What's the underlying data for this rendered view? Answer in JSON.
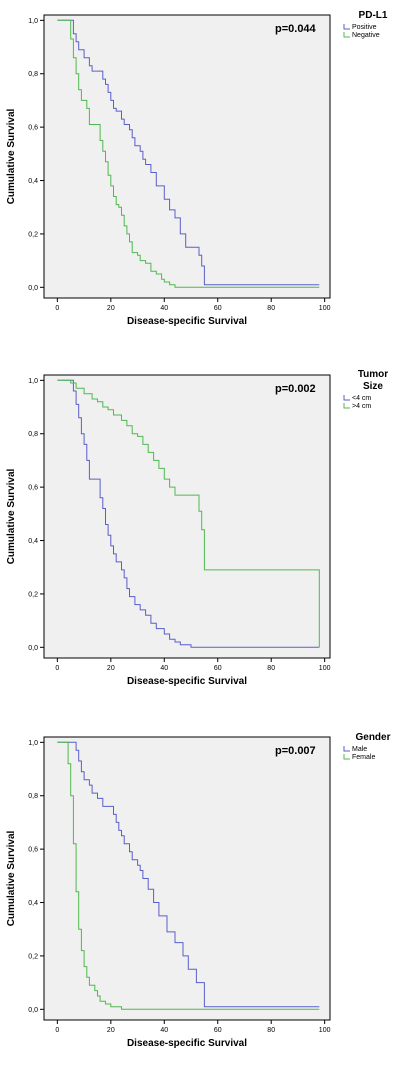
{
  "chart_data": [
    {
      "type": "line",
      "subtype": "kaplan-meier",
      "legend_title": [
        "PD-L1"
      ],
      "annotation": "p=0.044",
      "xlabel": "Disease-specific Survival",
      "ylabel": "Cumulative Survival",
      "xlim": [
        -5,
        102
      ],
      "ylim": [
        -0.04,
        1.02
      ],
      "x_ticks": [
        0,
        20,
        40,
        60,
        80,
        100
      ],
      "y_ticks": [
        0.0,
        0.2,
        0.4,
        0.6,
        0.8,
        1.0
      ],
      "y_tick_labels": [
        "0,0",
        "0,2",
        "0,4",
        "0,6",
        "0,8",
        "1,0"
      ],
      "legend_position": "top-right",
      "series": [
        {
          "name": "Positive",
          "color": "#5a5fc8",
          "points": [
            [
              0,
              1.0
            ],
            [
              5,
              1.0
            ],
            [
              6,
              0.95
            ],
            [
              7,
              0.92
            ],
            [
              8,
              0.89
            ],
            [
              10,
              0.86
            ],
            [
              12,
              0.83
            ],
            [
              13,
              0.81
            ],
            [
              16,
              0.81
            ],
            [
              17,
              0.78
            ],
            [
              18,
              0.76
            ],
            [
              19,
              0.73
            ],
            [
              20,
              0.7
            ],
            [
              21,
              0.67
            ],
            [
              22,
              0.66
            ],
            [
              24,
              0.63
            ],
            [
              25,
              0.61
            ],
            [
              27,
              0.59
            ],
            [
              28,
              0.56
            ],
            [
              29,
              0.53
            ],
            [
              30,
              0.53
            ],
            [
              31,
              0.51
            ],
            [
              32,
              0.48
            ],
            [
              33,
              0.46
            ],
            [
              34,
              0.46
            ],
            [
              35,
              0.43
            ],
            [
              37,
              0.38
            ],
            [
              40,
              0.33
            ],
            [
              42,
              0.29
            ],
            [
              44,
              0.26
            ],
            [
              46,
              0.2
            ],
            [
              48,
              0.15
            ],
            [
              50,
              0.15
            ],
            [
              53,
              0.12
            ],
            [
              54,
              0.08
            ],
            [
              55,
              0.01
            ],
            [
              98,
              0.01
            ]
          ]
        },
        {
          "name": "Negative",
          "color": "#4fb84f",
          "points": [
            [
              0,
              1.0
            ],
            [
              4,
              1.0
            ],
            [
              5,
              0.93
            ],
            [
              6,
              0.86
            ],
            [
              7,
              0.8
            ],
            [
              8,
              0.74
            ],
            [
              9,
              0.7
            ],
            [
              11,
              0.67
            ],
            [
              12,
              0.61
            ],
            [
              15,
              0.61
            ],
            [
              16,
              0.55
            ],
            [
              17,
              0.51
            ],
            [
              18,
              0.47
            ],
            [
              19,
              0.42
            ],
            [
              20,
              0.38
            ],
            [
              21,
              0.34
            ],
            [
              22,
              0.31
            ],
            [
              23,
              0.3
            ],
            [
              24,
              0.27
            ],
            [
              25,
              0.23
            ],
            [
              26,
              0.2
            ],
            [
              27,
              0.17
            ],
            [
              28,
              0.13
            ],
            [
              30,
              0.12
            ],
            [
              31,
              0.1
            ],
            [
              33,
              0.09
            ],
            [
              35,
              0.06
            ],
            [
              37,
              0.05
            ],
            [
              39,
              0.03
            ],
            [
              40,
              0.02
            ],
            [
              42,
              0.01
            ],
            [
              44,
              0.0
            ],
            [
              98,
              0.0
            ]
          ]
        }
      ]
    },
    {
      "type": "line",
      "subtype": "kaplan-meier",
      "legend_title": [
        "Tumor",
        "Size"
      ],
      "annotation": "p=0.002",
      "xlabel": "Disease-specific Survival",
      "ylabel": "Cumulative Survival",
      "xlim": [
        -5,
        102
      ],
      "ylim": [
        -0.04,
        1.02
      ],
      "x_ticks": [
        0,
        20,
        40,
        60,
        80,
        100
      ],
      "y_ticks": [
        0.0,
        0.2,
        0.4,
        0.6,
        0.8,
        1.0
      ],
      "y_tick_labels": [
        "0,0",
        "0,2",
        "0,4",
        "0,6",
        "0,8",
        "1,0"
      ],
      "legend_position": "top-right",
      "series": [
        {
          "name": "<4 cm",
          "color": "#5a5fc8",
          "points": [
            [
              0,
              1.0
            ],
            [
              5,
              1.0
            ],
            [
              6,
              0.96
            ],
            [
              7,
              0.91
            ],
            [
              8,
              0.86
            ],
            [
              9,
              0.8
            ],
            [
              10,
              0.76
            ],
            [
              11,
              0.7
            ],
            [
              12,
              0.63
            ],
            [
              15,
              0.63
            ],
            [
              16,
              0.56
            ],
            [
              17,
              0.52
            ],
            [
              18,
              0.46
            ],
            [
              19,
              0.42
            ],
            [
              20,
              0.38
            ],
            [
              21,
              0.35
            ],
            [
              22,
              0.32
            ],
            [
              24,
              0.29
            ],
            [
              25,
              0.26
            ],
            [
              26,
              0.22
            ],
            [
              27,
              0.19
            ],
            [
              29,
              0.16
            ],
            [
              31,
              0.14
            ],
            [
              33,
              0.12
            ],
            [
              35,
              0.09
            ],
            [
              37,
              0.07
            ],
            [
              40,
              0.05
            ],
            [
              42,
              0.03
            ],
            [
              44,
              0.02
            ],
            [
              46,
              0.01
            ],
            [
              50,
              0.0
            ],
            [
              98,
              0.0
            ]
          ]
        },
        {
          "name": ">4 cm",
          "color": "#4fb84f",
          "points": [
            [
              0,
              1.0
            ],
            [
              4,
              1.0
            ],
            [
              5,
              0.99
            ],
            [
              7,
              0.97
            ],
            [
              10,
              0.95
            ],
            [
              13,
              0.93
            ],
            [
              15,
              0.92
            ],
            [
              17,
              0.9
            ],
            [
              19,
              0.89
            ],
            [
              21,
              0.87
            ],
            [
              24,
              0.85
            ],
            [
              26,
              0.83
            ],
            [
              28,
              0.8
            ],
            [
              30,
              0.79
            ],
            [
              32,
              0.76
            ],
            [
              34,
              0.73
            ],
            [
              36,
              0.7
            ],
            [
              38,
              0.67
            ],
            [
              40,
              0.63
            ],
            [
              42,
              0.6
            ],
            [
              44,
              0.57
            ],
            [
              52,
              0.57
            ],
            [
              53,
              0.51
            ],
            [
              54,
              0.44
            ],
            [
              55,
              0.29
            ],
            [
              98,
              0.29
            ],
            [
              98,
              0.0
            ]
          ]
        }
      ]
    },
    {
      "type": "line",
      "subtype": "kaplan-meier",
      "legend_title": [
        "Gender"
      ],
      "annotation": "p=0.007",
      "xlabel": "Disease-specific Survival",
      "ylabel": "Cumulative Survival",
      "xlim": [
        -5,
        102
      ],
      "ylim": [
        -0.04,
        1.02
      ],
      "x_ticks": [
        0,
        20,
        40,
        60,
        80,
        100
      ],
      "y_ticks": [
        0.0,
        0.2,
        0.4,
        0.6,
        0.8,
        1.0
      ],
      "y_tick_labels": [
        "0,0",
        "0,2",
        "0,4",
        "0,6",
        "0,8",
        "1,0"
      ],
      "legend_position": "top-right",
      "series": [
        {
          "name": "Male",
          "color": "#5a5fc8",
          "points": [
            [
              0,
              1.0
            ],
            [
              6,
              1.0
            ],
            [
              7,
              0.97
            ],
            [
              8,
              0.93
            ],
            [
              9,
              0.89
            ],
            [
              10,
              0.86
            ],
            [
              12,
              0.84
            ],
            [
              13,
              0.81
            ],
            [
              15,
              0.79
            ],
            [
              17,
              0.76
            ],
            [
              20,
              0.76
            ],
            [
              21,
              0.73
            ],
            [
              22,
              0.7
            ],
            [
              23,
              0.67
            ],
            [
              24,
              0.65
            ],
            [
              25,
              0.62
            ],
            [
              27,
              0.59
            ],
            [
              28,
              0.56
            ],
            [
              30,
              0.54
            ],
            [
              31,
              0.52
            ],
            [
              32,
              0.49
            ],
            [
              34,
              0.45
            ],
            [
              36,
              0.4
            ],
            [
              38,
              0.35
            ],
            [
              41,
              0.29
            ],
            [
              44,
              0.25
            ],
            [
              47,
              0.2
            ],
            [
              49,
              0.15
            ],
            [
              52,
              0.1
            ],
            [
              55,
              0.01
            ],
            [
              98,
              0.01
            ]
          ]
        },
        {
          "name": "Female",
          "color": "#4fb84f",
          "points": [
            [
              0,
              1.0
            ],
            [
              3,
              1.0
            ],
            [
              4,
              0.92
            ],
            [
              5,
              0.8
            ],
            [
              6,
              0.62
            ],
            [
              7,
              0.44
            ],
            [
              8,
              0.3
            ],
            [
              9,
              0.22
            ],
            [
              10,
              0.16
            ],
            [
              11,
              0.12
            ],
            [
              12,
              0.09
            ],
            [
              14,
              0.07
            ],
            [
              15,
              0.05
            ],
            [
              16,
              0.03
            ],
            [
              18,
              0.02
            ],
            [
              20,
              0.01
            ],
            [
              24,
              0.0
            ],
            [
              98,
              0.0
            ]
          ]
        }
      ]
    }
  ]
}
